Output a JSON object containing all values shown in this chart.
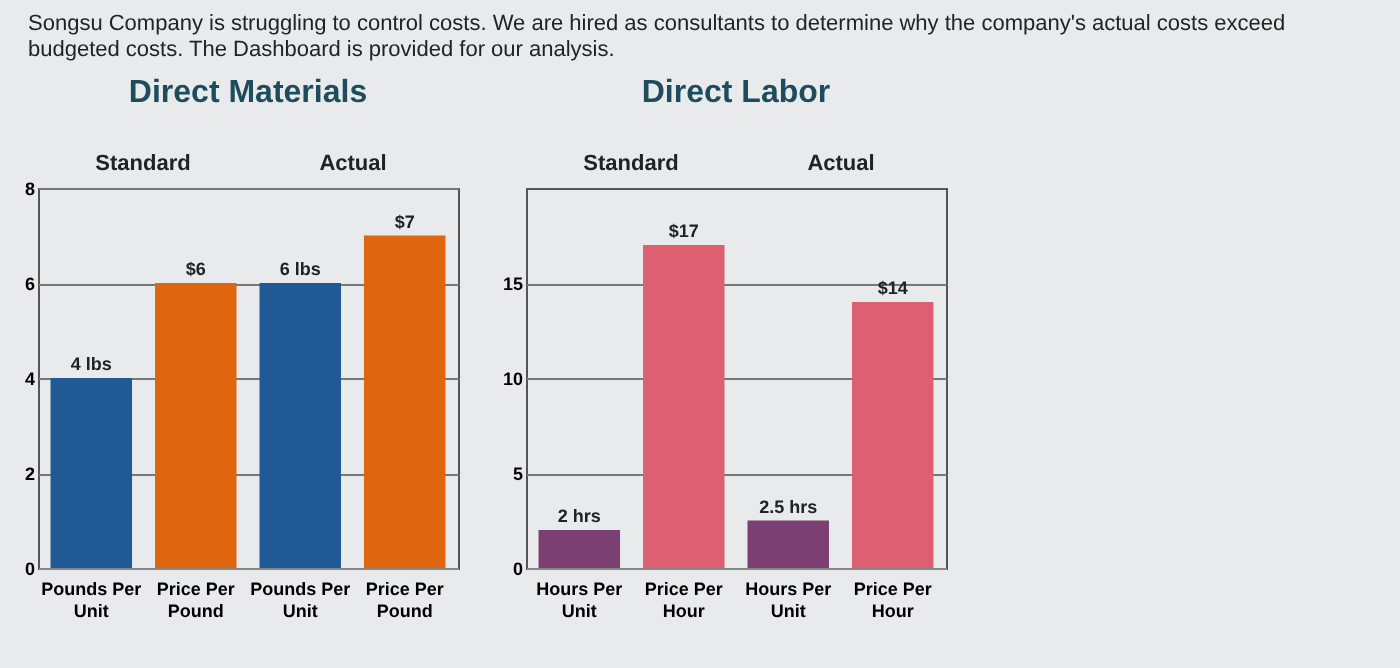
{
  "chart_data": [
    {
      "type": "bar",
      "title": "Direct Materials",
      "annotations": [
        "Songsu Company is struggling to control costs. We are hired as consultants to determine why the company's actual costs exceed budgeted costs. The Dashboard is provided for our analysis.",
        "Standard",
        "Actual"
      ],
      "categories": [
        "Pounds Per Unit",
        "Price Per Pound",
        "Pounds Per Unit",
        "Price Per Pound"
      ],
      "values": [
        4,
        6,
        6,
        7
      ],
      "colors": [
        "#1f5a96",
        "#e0650f",
        "#1f5a96",
        "#e0650f"
      ],
      "value_labels": [
        "4 lbs",
        "$6",
        "6 lbs",
        "$7"
      ],
      "ylim": [
        0,
        8
      ],
      "yticks": [
        0,
        2,
        4,
        6,
        8
      ],
      "grid": "y"
    },
    {
      "type": "bar",
      "title": "Direct Labor",
      "annotations": [
        "Standard",
        "Actual"
      ],
      "categories": [
        "Hours Per Unit",
        "Price Per Hour",
        "Hours Per Unit",
        "Price Per Hour"
      ],
      "values": [
        2,
        17,
        2.5,
        14
      ],
      "colors": [
        "#7b3f72",
        "#dd5f72",
        "#7b3f72",
        "#dd5f72"
      ],
      "value_labels": [
        "2 hrs",
        "$17",
        "2.5 hrs",
        "$14"
      ],
      "ylim": [
        0,
        20
      ],
      "yticks": [
        0,
        5,
        10,
        15
      ],
      "grid": "y"
    }
  ]
}
